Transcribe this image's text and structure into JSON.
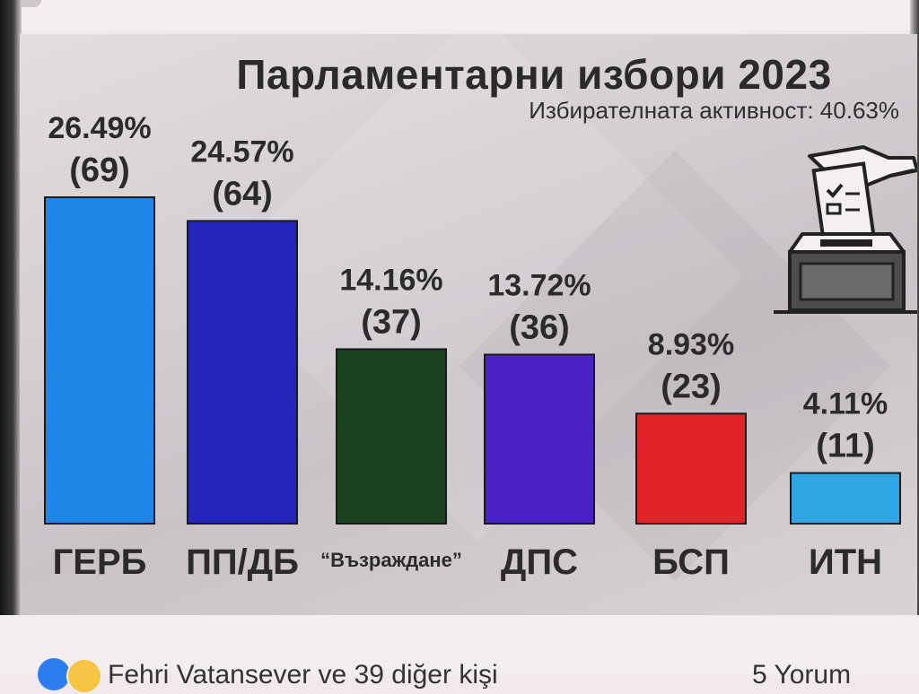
{
  "post": {
    "reactions_text": "Fehri Vatansever ve 39 diğer kişi",
    "comments_text": "5 Yorum",
    "reaction_icons": [
      "like-icon",
      "wow-icon"
    ]
  },
  "colors": {
    "ГЕРБ": "#1f86e8",
    "ПП/ДБ": "#2326b8",
    "Възраждане": "#19401f",
    "ДПС": "#4a22c4",
    "БСП": "#e3232a",
    "ИТН": "#2fa6e3"
  },
  "chart_data": {
    "type": "bar",
    "title": "Парламентарни избори 2023",
    "subtitle": "Избирателната активност: 40.63%",
    "categories": [
      "ГЕРБ",
      "ПП/ДБ",
      "“Възраждане”",
      "ДПС",
      "БСП",
      "ИТН"
    ],
    "values": [
      26.49,
      24.57,
      14.16,
      13.72,
      8.93,
      4.11
    ],
    "seats": [
      69,
      64,
      37,
      36,
      23,
      11
    ],
    "value_labels": [
      "26.49%",
      "24.57%",
      "14.16%",
      "13.72%",
      "8.93%",
      "4.11%"
    ],
    "seat_labels": [
      "(69)",
      "(64)",
      "(37)",
      "(36)",
      "(23)",
      "(11)"
    ],
    "bar_colors": [
      "#1f86e8",
      "#2326b8",
      "#19401f",
      "#4a22c4",
      "#e3232a",
      "#2fa6e3"
    ],
    "ylim": [
      0,
      26.49
    ],
    "grid": false,
    "legend": "none",
    "icons": [
      "ballot-box-icon"
    ]
  }
}
